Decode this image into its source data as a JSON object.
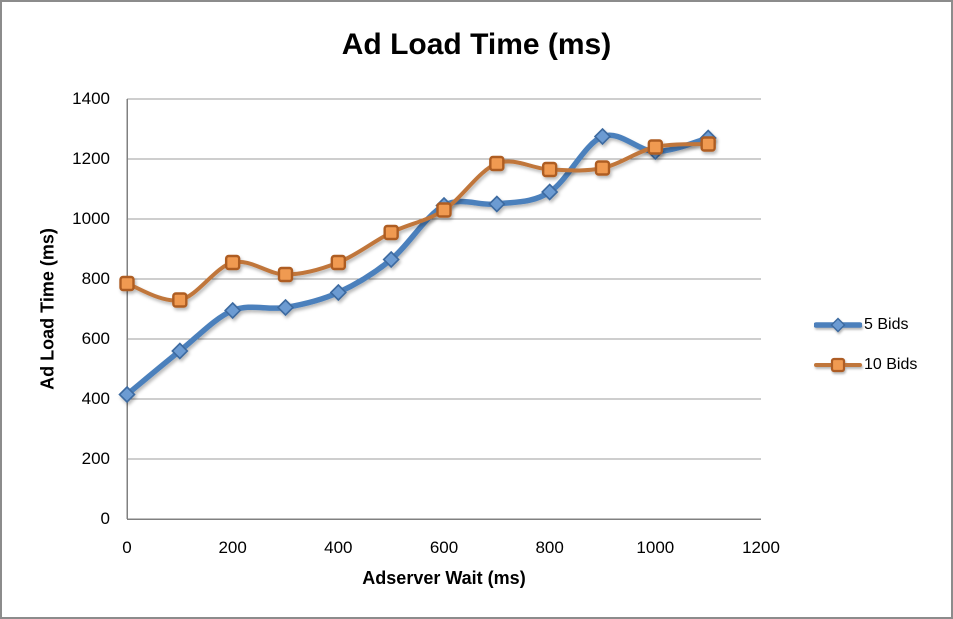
{
  "chart_data": {
    "type": "line",
    "title": "Ad Load Time (ms)",
    "xlabel": "Adserver Wait (ms)",
    "ylabel": "Ad Load Time (ms)",
    "x": [
      0,
      100,
      200,
      300,
      400,
      500,
      600,
      700,
      800,
      900,
      1000,
      1100
    ],
    "series": [
      {
        "name": "5 Bids",
        "marker": "diamond",
        "line_color": "#4C80BC",
        "marker_fill": "#6C9BD2",
        "marker_stroke": "#3C6AA0",
        "line_width": 5.5,
        "values": [
          415,
          560,
          695,
          705,
          755,
          865,
          1045,
          1050,
          1090,
          1275,
          1225,
          1270
        ]
      },
      {
        "name": "10 Bids",
        "marker": "square",
        "line_color": "#C0763B",
        "marker_fill": "#F09A51",
        "marker_stroke": "#AE5D24",
        "line_width": 4,
        "values": [
          785,
          730,
          855,
          815,
          855,
          955,
          1030,
          1185,
          1165,
          1170,
          1240,
          1250
        ]
      }
    ],
    "x_ticks": [
      0,
      200,
      400,
      600,
      800,
      1000,
      1200
    ],
    "y_ticks": [
      0,
      200,
      400,
      600,
      800,
      1000,
      1200,
      1400
    ],
    "xlim": [
      0,
      1200
    ],
    "ylim": [
      0,
      1400
    ],
    "grid": "horizontal",
    "legend_position": "right",
    "smooth_lines": true
  },
  "colors": {
    "gridline": "#9C9C9C",
    "axis_line": "#808080",
    "border": "#8C8C8C",
    "background": "#FFFFFF",
    "text": "#000000"
  }
}
